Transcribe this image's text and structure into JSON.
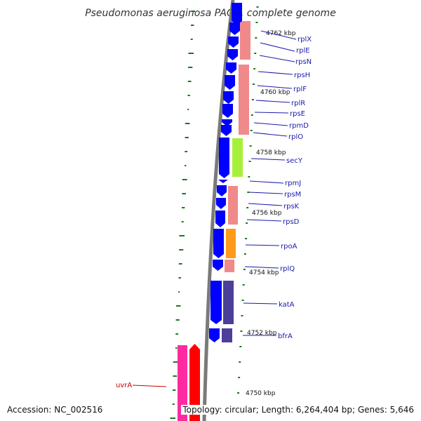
{
  "title": "Pseudomonas aeruginosa PAO1, complete genome",
  "footer": {
    "accession": "Accession: NC_002516",
    "stats": "Topology: circular; Length: 6,264,404 bp; Genes: 5,646"
  },
  "kbp_ticks": [
    "4762 kbp",
    "4760 kbp",
    "4758 kbp",
    "4756 kbp",
    "4754 kbp",
    "4752 kbp",
    "4750 kbp"
  ],
  "genes": [
    {
      "name": "rplX",
      "color": "#0000ff"
    },
    {
      "name": "rplE",
      "color": "#0000ff"
    },
    {
      "name": "rpsN",
      "color": "#0000ff"
    },
    {
      "name": "rpsH",
      "color": "#0000ff"
    },
    {
      "name": "rplF",
      "color": "#0000ff"
    },
    {
      "name": "rplR",
      "color": "#0000ff"
    },
    {
      "name": "rpsE",
      "color": "#0000ff"
    },
    {
      "name": "rpmD",
      "color": "#0000ff"
    },
    {
      "name": "rplO",
      "color": "#0000ff"
    },
    {
      "name": "secY",
      "color": "#0000ff"
    },
    {
      "name": "rpmJ",
      "color": "#0000ff"
    },
    {
      "name": "rpsM",
      "color": "#0000ff"
    },
    {
      "name": "rpsK",
      "color": "#0000ff"
    },
    {
      "name": "rpsD",
      "color": "#0000ff"
    },
    {
      "name": "rpoA",
      "color": "#0000ff"
    },
    {
      "name": "rplQ",
      "color": "#0000ff"
    },
    {
      "name": "katA",
      "color": "#0000ff"
    },
    {
      "name": "bfrA",
      "color": "#0000ff"
    },
    {
      "name": "uvrA",
      "color": "#ff0000"
    }
  ],
  "colors": {
    "forward_strand": "#0000ff",
    "reverse_strand": "#ff0000",
    "cog_translation": "#f08a8a",
    "cog_secretion": "#a6f03a",
    "cog_transcription": "#ff9a1a",
    "cog_inorganic_ion": "#4b3f9a",
    "cog_dna_repair": "#ff2aa0",
    "backbone": "#7a7a7a",
    "tick_mark": "#1a7a1a"
  }
}
